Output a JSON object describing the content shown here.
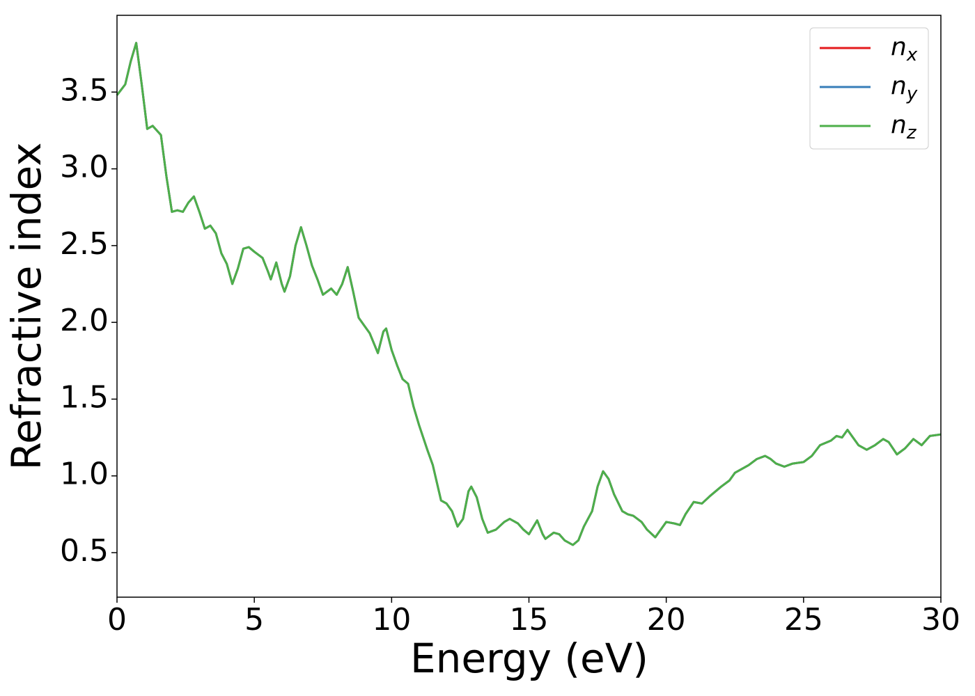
{
  "chart_data": {
    "type": "line",
    "x_label": "Energy (eV)",
    "y_label": "Refractive index",
    "x": [
      0,
      0.3,
      0.5,
      0.7,
      0.9,
      1.1,
      1.3,
      1.6,
      1.8,
      2.0,
      2.2,
      2.4,
      2.6,
      2.8,
      3.0,
      3.2,
      3.4,
      3.6,
      3.8,
      4.0,
      4.2,
      4.4,
      4.6,
      4.8,
      5.0,
      5.3,
      5.5,
      5.6,
      5.8,
      6.0,
      6.1,
      6.3,
      6.5,
      6.7,
      6.9,
      7.1,
      7.3,
      7.5,
      7.8,
      8.0,
      8.2,
      8.4,
      8.6,
      8.8,
      9.0,
      9.2,
      9.5,
      9.7,
      9.8,
      10.0,
      10.2,
      10.4,
      10.6,
      10.8,
      11.0,
      11.3,
      11.5,
      11.8,
      12.0,
      12.2,
      12.4,
      12.6,
      12.8,
      12.9,
      13.1,
      13.3,
      13.5,
      13.8,
      14.1,
      14.3,
      14.6,
      14.8,
      15.0,
      15.3,
      15.5,
      15.6,
      15.9,
      16.1,
      16.3,
      16.6,
      16.8,
      17.0,
      17.3,
      17.5,
      17.7,
      17.9,
      18.1,
      18.4,
      18.6,
      18.8,
      19.1,
      19.3,
      19.6,
      19.8,
      20.0,
      20.3,
      20.5,
      20.7,
      21.0,
      21.3,
      21.6,
      22.0,
      22.3,
      22.5,
      23.0,
      23.3,
      23.6,
      23.8,
      24.0,
      24.3,
      24.6,
      25.0,
      25.3,
      25.6,
      26.0,
      26.2,
      26.4,
      26.6,
      26.8,
      27.0,
      27.3,
      27.6,
      27.9,
      28.1,
      28.4,
      28.7,
      29.0,
      29.3,
      29.6,
      30.0
    ],
    "series": [
      {
        "name": "nx",
        "color": "#e41a1c",
        "values": [
          3.48,
          3.55,
          3.7,
          3.82,
          3.55,
          3.26,
          3.28,
          3.22,
          2.95,
          2.72,
          2.73,
          2.72,
          2.78,
          2.82,
          2.72,
          2.61,
          2.63,
          2.58,
          2.45,
          2.38,
          2.25,
          2.35,
          2.48,
          2.49,
          2.46,
          2.42,
          2.33,
          2.28,
          2.39,
          2.25,
          2.2,
          2.3,
          2.5,
          2.62,
          2.5,
          2.37,
          2.28,
          2.18,
          2.22,
          2.18,
          2.25,
          2.36,
          2.2,
          2.03,
          1.98,
          1.93,
          1.8,
          1.94,
          1.96,
          1.82,
          1.72,
          1.63,
          1.6,
          1.45,
          1.33,
          1.17,
          1.07,
          0.84,
          0.82,
          0.77,
          0.67,
          0.72,
          0.9,
          0.93,
          0.86,
          0.72,
          0.63,
          0.65,
          0.7,
          0.72,
          0.69,
          0.65,
          0.62,
          0.71,
          0.62,
          0.59,
          0.63,
          0.62,
          0.58,
          0.55,
          0.58,
          0.67,
          0.77,
          0.93,
          1.03,
          0.98,
          0.88,
          0.77,
          0.75,
          0.74,
          0.7,
          0.65,
          0.6,
          0.65,
          0.7,
          0.69,
          0.68,
          0.75,
          0.83,
          0.82,
          0.87,
          0.93,
          0.97,
          1.02,
          1.07,
          1.11,
          1.13,
          1.11,
          1.08,
          1.06,
          1.08,
          1.09,
          1.13,
          1.2,
          1.23,
          1.26,
          1.25,
          1.3,
          1.25,
          1.2,
          1.17,
          1.2,
          1.24,
          1.22,
          1.14,
          1.18,
          1.24,
          1.2,
          1.26,
          1.27
        ]
      },
      {
        "name": "ny",
        "color": "#377eb8",
        "values": [
          3.48,
          3.55,
          3.7,
          3.82,
          3.55,
          3.26,
          3.28,
          3.22,
          2.95,
          2.72,
          2.73,
          2.72,
          2.78,
          2.82,
          2.72,
          2.61,
          2.63,
          2.58,
          2.45,
          2.38,
          2.25,
          2.35,
          2.48,
          2.49,
          2.46,
          2.42,
          2.33,
          2.28,
          2.39,
          2.25,
          2.2,
          2.3,
          2.5,
          2.62,
          2.5,
          2.37,
          2.28,
          2.18,
          2.22,
          2.18,
          2.25,
          2.36,
          2.2,
          2.03,
          1.98,
          1.93,
          1.8,
          1.94,
          1.96,
          1.82,
          1.72,
          1.63,
          1.6,
          1.45,
          1.33,
          1.17,
          1.07,
          0.84,
          0.82,
          0.77,
          0.67,
          0.72,
          0.9,
          0.93,
          0.86,
          0.72,
          0.63,
          0.65,
          0.7,
          0.72,
          0.69,
          0.65,
          0.62,
          0.71,
          0.62,
          0.59,
          0.63,
          0.62,
          0.58,
          0.55,
          0.58,
          0.67,
          0.77,
          0.93,
          1.03,
          0.98,
          0.88,
          0.77,
          0.75,
          0.74,
          0.7,
          0.65,
          0.6,
          0.65,
          0.7,
          0.69,
          0.68,
          0.75,
          0.83,
          0.82,
          0.87,
          0.93,
          0.97,
          1.02,
          1.07,
          1.11,
          1.13,
          1.11,
          1.08,
          1.06,
          1.08,
          1.09,
          1.13,
          1.2,
          1.23,
          1.26,
          1.25,
          1.3,
          1.25,
          1.2,
          1.17,
          1.2,
          1.24,
          1.22,
          1.14,
          1.18,
          1.24,
          1.2,
          1.26,
          1.27
        ]
      },
      {
        "name": "nz",
        "color": "#4daf4a",
        "values": [
          3.48,
          3.55,
          3.7,
          3.82,
          3.55,
          3.26,
          3.28,
          3.22,
          2.95,
          2.72,
          2.73,
          2.72,
          2.78,
          2.82,
          2.72,
          2.61,
          2.63,
          2.58,
          2.45,
          2.38,
          2.25,
          2.35,
          2.48,
          2.49,
          2.46,
          2.42,
          2.33,
          2.28,
          2.39,
          2.25,
          2.2,
          2.3,
          2.5,
          2.62,
          2.5,
          2.37,
          2.28,
          2.18,
          2.22,
          2.18,
          2.25,
          2.36,
          2.2,
          2.03,
          1.98,
          1.93,
          1.8,
          1.94,
          1.96,
          1.82,
          1.72,
          1.63,
          1.6,
          1.45,
          1.33,
          1.17,
          1.07,
          0.84,
          0.82,
          0.77,
          0.67,
          0.72,
          0.9,
          0.93,
          0.86,
          0.72,
          0.63,
          0.65,
          0.7,
          0.72,
          0.69,
          0.65,
          0.62,
          0.71,
          0.62,
          0.59,
          0.63,
          0.62,
          0.58,
          0.55,
          0.58,
          0.67,
          0.77,
          0.93,
          1.03,
          0.98,
          0.88,
          0.77,
          0.75,
          0.74,
          0.7,
          0.65,
          0.6,
          0.65,
          0.7,
          0.69,
          0.68,
          0.75,
          0.83,
          0.82,
          0.87,
          0.93,
          0.97,
          1.02,
          1.07,
          1.11,
          1.13,
          1.11,
          1.08,
          1.06,
          1.08,
          1.09,
          1.13,
          1.2,
          1.23,
          1.26,
          1.25,
          1.3,
          1.25,
          1.2,
          1.17,
          1.2,
          1.24,
          1.22,
          1.14,
          1.18,
          1.24,
          1.2,
          1.26,
          1.27
        ]
      }
    ],
    "xlim": [
      0,
      30
    ],
    "xticks": [
      0,
      5,
      10,
      15,
      20,
      25,
      30
    ],
    "ylim": [
      0.21,
      4.0
    ],
    "yticks": [
      0.5,
      {
        "value": 1,
        "label": "1.0"
      },
      1.5,
      {
        "value": 2,
        "label": "2.0"
      },
      2.5,
      {
        "value": 3,
        "label": "3.0"
      },
      3.5
    ],
    "grid": false,
    "legend": "upper right"
  }
}
